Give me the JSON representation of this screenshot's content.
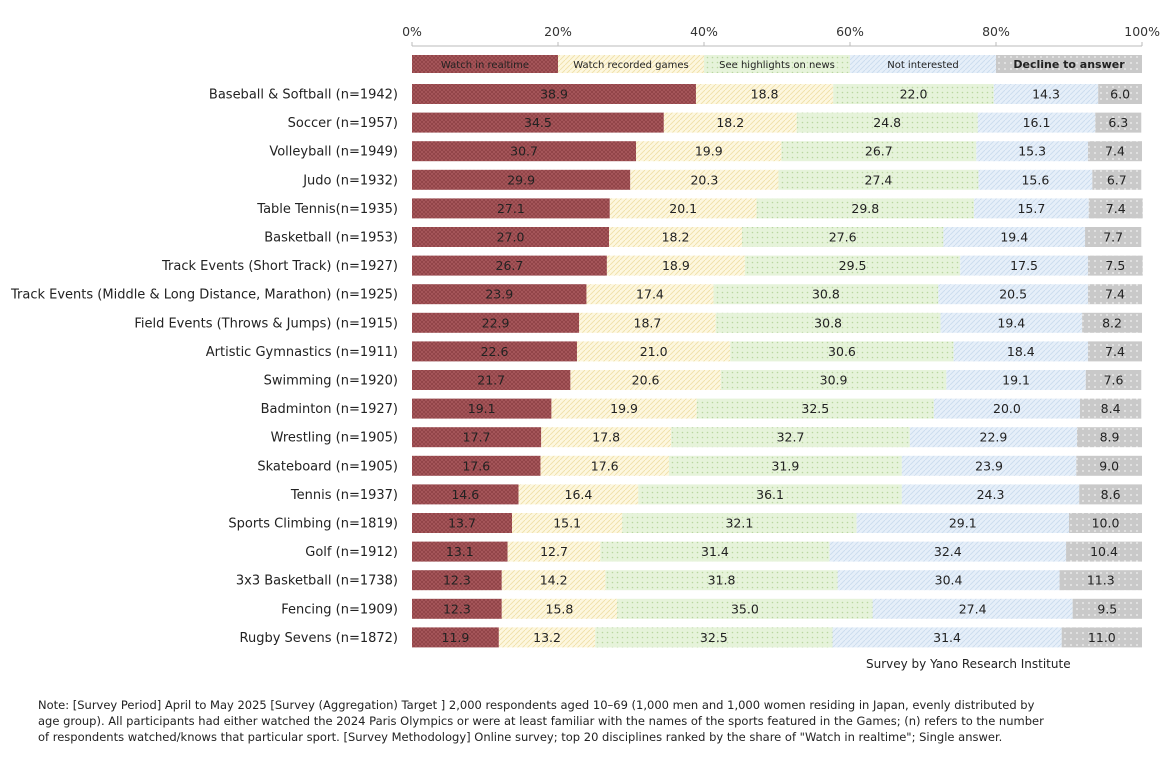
{
  "chart_data": {
    "type": "stacked-bar-horizontal-100",
    "axis": {
      "ticks": [
        "0%",
        "20%",
        "40%",
        "60%",
        "80%",
        "100%"
      ],
      "xlim": [
        0,
        100
      ]
    },
    "series": [
      {
        "name": "Watch in realtime",
        "color": "#a8585c",
        "pattern": "cross"
      },
      {
        "name": "Watch recorded games",
        "color": "#fdf6dc",
        "pattern": "diag"
      },
      {
        "name": "See highlights on news",
        "color": "#e3f2d6",
        "pattern": "dots"
      },
      {
        "name": "Not interested",
        "color": "#e4eef9",
        "pattern": "diag"
      },
      {
        "name": "Decline to answer",
        "color": "#c8c8c8",
        "pattern": "dots"
      }
    ],
    "categories": [
      {
        "label": "Baseball & Softball (n=1942)",
        "values": [
          38.9,
          18.8,
          22.0,
          14.3,
          6.0
        ],
        "display": [
          "38.9",
          "18.8",
          "22.0",
          "14.3",
          "6.0"
        ]
      },
      {
        "label": "Soccer (n=1957)",
        "values": [
          34.5,
          18.2,
          24.8,
          16.1,
          6.3
        ],
        "display": [
          "34.5",
          "18.2",
          "24.8",
          "16.1",
          "6.3"
        ]
      },
      {
        "label": "Volleyball (n=1949)",
        "values": [
          30.7,
          19.9,
          26.7,
          15.3,
          7.4
        ],
        "display": [
          "30.7",
          "19.9",
          "26.7",
          "15.3",
          "7.4"
        ]
      },
      {
        "label": "Judo (n=1932)",
        "values": [
          29.9,
          20.3,
          27.4,
          15.6,
          6.7
        ],
        "display": [
          "29.9",
          "20.3",
          "27.4",
          "15.6",
          "6.7"
        ]
      },
      {
        "label": "Table Tennis(n=1935)",
        "values": [
          27.1,
          20.1,
          29.8,
          15.7,
          7.4
        ],
        "display": [
          "27.1",
          "20.1",
          "29.8",
          "15.7",
          "7.4"
        ]
      },
      {
        "label": "Basketball (n=1953)",
        "values": [
          27.0,
          18.2,
          27.6,
          19.4,
          7.7
        ],
        "display": [
          "27.0",
          "18.2",
          "27.6",
          "19.4",
          "7.7"
        ]
      },
      {
        "label": "Track Events (Short Track) (n=1927)",
        "values": [
          26.7,
          18.9,
          29.5,
          17.5,
          7.5
        ],
        "display": [
          "26.7",
          "18.9",
          "29.5",
          "17.5",
          "7.5"
        ]
      },
      {
        "label": "Track Events (Middle & Long Distance, Marathon) (n=1925)",
        "values": [
          23.9,
          17.4,
          30.8,
          20.5,
          7.4
        ],
        "display": [
          "23.9",
          "17.4",
          "30.8",
          "20.5",
          "7.4"
        ]
      },
      {
        "label": "Field Events (Throws & Jumps) (n=1915)",
        "values": [
          22.9,
          18.7,
          30.8,
          19.4,
          8.2
        ],
        "display": [
          "22.9",
          "18.7",
          "30.8",
          "19.4",
          "8.2"
        ]
      },
      {
        "label": "Artistic Gymnastics (n=1911)",
        "values": [
          22.6,
          21.0,
          30.6,
          18.4,
          7.4
        ],
        "display": [
          "22.6",
          "21.0",
          "30.6",
          "18.4",
          "7.4"
        ]
      },
      {
        "label": "Swimming (n=1920)",
        "values": [
          21.7,
          20.6,
          30.9,
          19.1,
          7.6
        ],
        "display": [
          "21.7",
          "20.6",
          "30.9",
          "19.1",
          "7.6"
        ]
      },
      {
        "label": "Badminton (n=1927)",
        "values": [
          19.1,
          19.9,
          32.5,
          20.0,
          8.4
        ],
        "display": [
          "19.1",
          "19.9",
          "32.5",
          "20.0",
          "8.4"
        ]
      },
      {
        "label": "Wrestling (n=1905)",
        "values": [
          17.7,
          17.8,
          32.7,
          22.9,
          8.9
        ],
        "display": [
          "17.7",
          "17.8",
          "32.7",
          "22.9",
          "8.9"
        ]
      },
      {
        "label": "Skateboard (n=1905)",
        "values": [
          17.6,
          17.6,
          31.9,
          23.9,
          9.0
        ],
        "display": [
          "17.6",
          "17.6",
          "31.9",
          "23.9",
          "9.0"
        ]
      },
      {
        "label": "Tennis (n=1937)",
        "values": [
          14.6,
          16.4,
          36.1,
          24.3,
          8.6
        ],
        "display": [
          "14.6",
          "16.4",
          "36.1",
          "24.3",
          "8.6"
        ]
      },
      {
        "label": "Sports Climbing (n=1819)",
        "values": [
          13.7,
          15.1,
          32.1,
          29.1,
          10.0
        ],
        "display": [
          "13.7",
          "15.1",
          "32.1",
          "29.1",
          "10.0"
        ]
      },
      {
        "label": "Golf (n=1912)",
        "values": [
          13.1,
          12.7,
          31.4,
          32.4,
          10.4
        ],
        "display": [
          "13.1",
          "12.7",
          "31.4",
          "32.4",
          "10.4"
        ]
      },
      {
        "label": "3x3 Basketball (n=1738)",
        "values": [
          12.3,
          14.2,
          31.8,
          30.4,
          11.3
        ],
        "display": [
          "12.3",
          "14.2",
          "31.8",
          "30.4",
          "11.3"
        ]
      },
      {
        "label": "Fencing (n=1909)",
        "values": [
          12.3,
          15.8,
          35.0,
          27.4,
          9.5
        ],
        "display": [
          "12.3",
          "15.8",
          "35.0",
          "27.4",
          "9.5"
        ]
      },
      {
        "label": "Rugby Sevens (n=1872)",
        "values": [
          11.9,
          13.2,
          32.5,
          31.4,
          11.0
        ],
        "display": [
          "11.9",
          "13.2",
          "32.5",
          "31.4",
          "11.0"
        ]
      }
    ]
  },
  "source": "Survey by Yano Research Institute",
  "note": "Note: [Survey Period] April to May 2025 [Survey  (Aggregation) Target ] 2,000 respondents aged 10–69 (1,000 men and 1,000 women residing in Japan, evenly distributed by age group). All participants had either watched the 2024 Paris Olympics or were at least familiar with the names of the sports featured in the Games; (n) refers to the number of respondents watched/knows that particular sport. [Survey Methodology] Online survey; top 20 disciplines ranked by the share of \"Watch in realtime\"; Single answer."
}
